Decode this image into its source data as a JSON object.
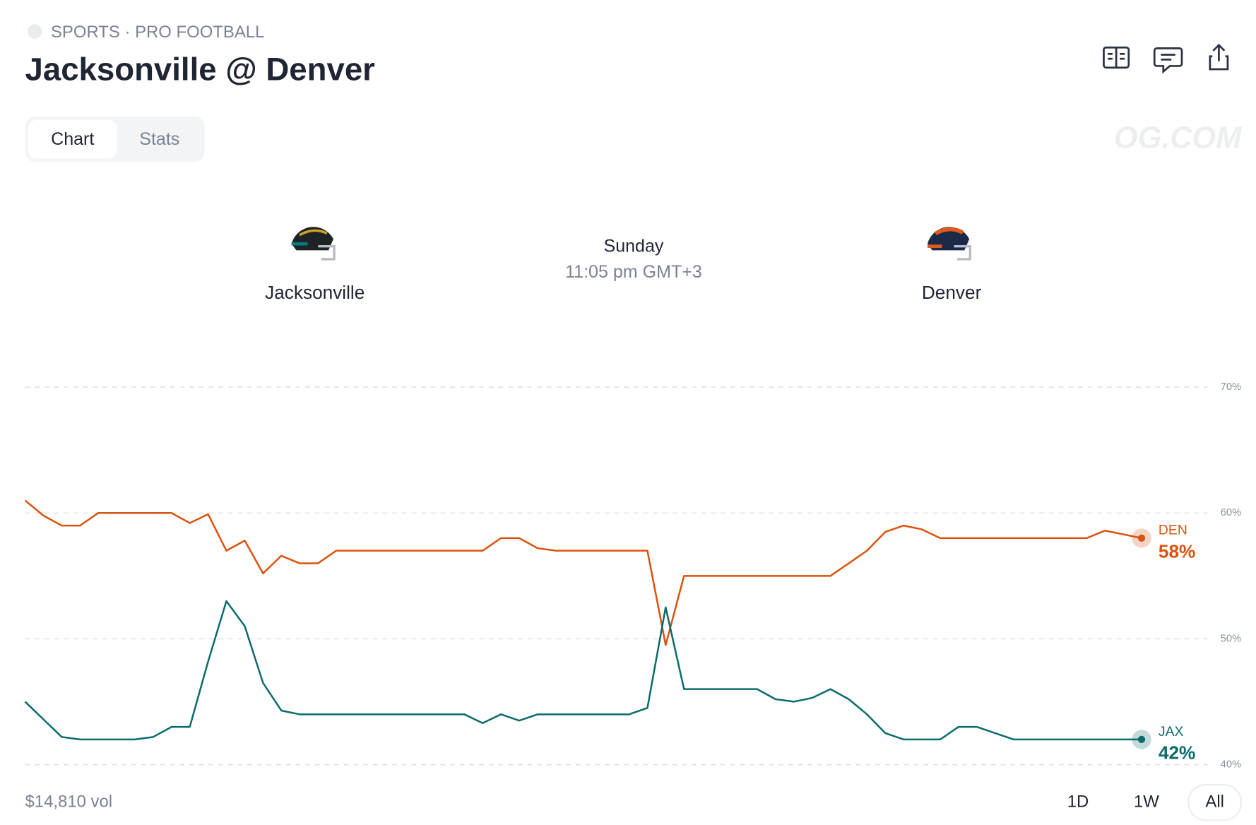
{
  "header": {
    "category": "SPORTS · PRO FOOTBALL",
    "title": "Jacksonville @ Denver"
  },
  "tabs": [
    "Chart",
    "Stats"
  ],
  "watermark": "OG.COM",
  "game": {
    "home": "Jacksonville",
    "away": "Denver",
    "day": "Sunday",
    "time": "11:05 pm GMT+3"
  },
  "chart_data": {
    "type": "line",
    "ylim": [
      40,
      70
    ],
    "yticks": [
      {
        "value": 40,
        "label": "40%"
      },
      {
        "value": 50,
        "label": "50%"
      },
      {
        "value": 60,
        "label": "60%"
      },
      {
        "value": 70,
        "label": "70%"
      }
    ],
    "grid": true,
    "series": [
      {
        "name": "DEN",
        "color": "#d9530f",
        "end_label": "58%",
        "values": [
          61,
          59.8,
          59,
          59,
          60,
          60,
          60,
          60,
          60,
          59.2,
          59.9,
          57,
          57.8,
          55.2,
          56.6,
          56,
          56,
          57,
          57,
          57,
          57,
          57,
          57,
          57,
          57,
          57,
          58,
          58,
          57.2,
          57,
          57,
          57,
          57,
          57,
          57,
          49.5,
          55,
          55,
          55,
          55,
          55,
          55,
          55,
          55,
          55,
          56,
          57,
          58.5,
          59,
          58.7,
          58,
          58,
          58,
          58,
          58,
          58,
          58,
          58,
          58,
          58.6,
          58.3,
          58
        ]
      },
      {
        "name": "JAX",
        "color": "#0b6b6b",
        "end_label": "42%",
        "values": [
          45,
          43.6,
          42.2,
          42,
          42,
          42,
          42,
          42.2,
          43,
          43,
          48.2,
          53,
          51,
          46.5,
          44.3,
          44,
          44,
          44,
          44,
          44,
          44,
          44,
          44,
          44,
          44,
          43.3,
          44,
          43.5,
          44,
          44,
          44,
          44,
          44,
          44,
          44.5,
          52.5,
          46,
          46,
          46,
          46,
          46,
          45.2,
          45,
          45.3,
          46,
          45.2,
          44,
          42.5,
          42,
          42,
          42,
          43,
          43,
          42.5,
          42,
          42,
          42,
          42,
          42,
          42,
          42,
          42
        ]
      }
    ]
  },
  "footer": {
    "volume": "$14,810 vol",
    "ranges": [
      "1D",
      "1W",
      "All"
    ]
  }
}
